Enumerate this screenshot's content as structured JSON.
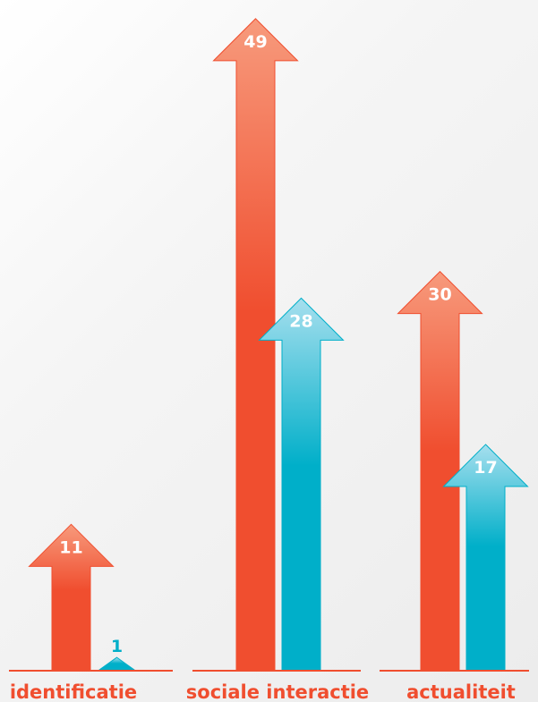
{
  "chart_data": {
    "type": "bar",
    "categories": [
      "identificatie",
      "sociale interactie",
      "actualiteit"
    ],
    "series": [
      {
        "values": [
          11,
          49,
          30
        ]
      },
      {
        "values": [
          1,
          28,
          17
        ]
      }
    ],
    "data_labels": [
      [
        "11",
        "49",
        "30"
      ],
      [
        "1",
        "28",
        "17"
      ]
    ],
    "title": "",
    "xlabel": "",
    "ylabel": "",
    "ylim": [
      0,
      49
    ],
    "grid": false,
    "legend": "none",
    "colors": {
      "series_0": "#f04e2f",
      "series_0_light": "#f79a7c",
      "series_1": "#00afc9",
      "series_1_light": "#a6dfee",
      "baseline": "#f04e2f",
      "category_label": "#f04e2f",
      "value_label_on_arrow": "#ffffff",
      "value_label_small": "#00afc9"
    }
  }
}
